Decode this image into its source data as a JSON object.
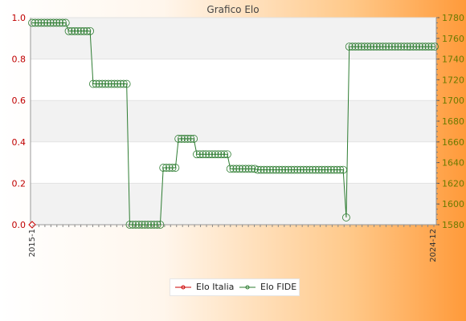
{
  "chart_data": {
    "type": "line",
    "title": "Grafico Elo",
    "xlabel": "",
    "ylabel_left": "",
    "ylabel_right": "",
    "left_axis": {
      "ylim": [
        0,
        1
      ],
      "ticks": [
        "0.0",
        "0.2",
        "0.4",
        "0.6",
        "0.8",
        "1.0"
      ],
      "color": "#c00000"
    },
    "right_axis": {
      "ylim": [
        1580,
        1780
      ],
      "ticks": [
        "1580",
        "1600",
        "1620",
        "1640",
        "1660",
        "1680",
        "1700",
        "1720",
        "1740",
        "1760",
        "1780"
      ],
      "color": "#6b7a00"
    },
    "grid": true,
    "legend_position": "bottom",
    "x_tick_labels": [
      "2015-1",
      "2024-12"
    ],
    "series": [
      {
        "name": "Elo Italia",
        "axis": "left",
        "color": "#cc0000",
        "values": [
          0
        ]
      },
      {
        "name": "Elo FIDE",
        "axis": "right",
        "color": "#2e7d32",
        "values": [
          1775,
          1775,
          1775,
          1775,
          1775,
          1775,
          1775,
          1775,
          1775,
          1775,
          1775,
          1775,
          1767,
          1767,
          1767,
          1767,
          1767,
          1767,
          1767,
          1767,
          1716,
          1716,
          1716,
          1716,
          1716,
          1716,
          1716,
          1716,
          1716,
          1716,
          1716,
          1716,
          1580,
          1580,
          1580,
          1580,
          1580,
          1580,
          1580,
          1580,
          1580,
          1580,
          1580,
          1635,
          1635,
          1635,
          1635,
          1635,
          1663,
          1663,
          1663,
          1663,
          1663,
          1663,
          1648,
          1648,
          1648,
          1648,
          1648,
          1648,
          1648,
          1648,
          1648,
          1648,
          1648,
          1634,
          1634,
          1634,
          1634,
          1634,
          1634,
          1634,
          1634,
          1634,
          1633,
          1633,
          1633,
          1633,
          1633,
          1633,
          1633,
          1633,
          1633,
          1633,
          1633,
          1633,
          1633,
          1633,
          1633,
          1633,
          1633,
          1633,
          1633,
          1633,
          1633,
          1633,
          1633,
          1633,
          1633,
          1633,
          1633,
          1633,
          1633,
          1587,
          1752,
          1752,
          1752,
          1752,
          1752,
          1752,
          1752,
          1752,
          1752,
          1752,
          1752,
          1752,
          1752,
          1752,
          1752,
          1752,
          1752,
          1752,
          1752,
          1752,
          1752,
          1752,
          1752,
          1752,
          1752,
          1752,
          1752,
          1752,
          1752
        ]
      }
    ]
  }
}
